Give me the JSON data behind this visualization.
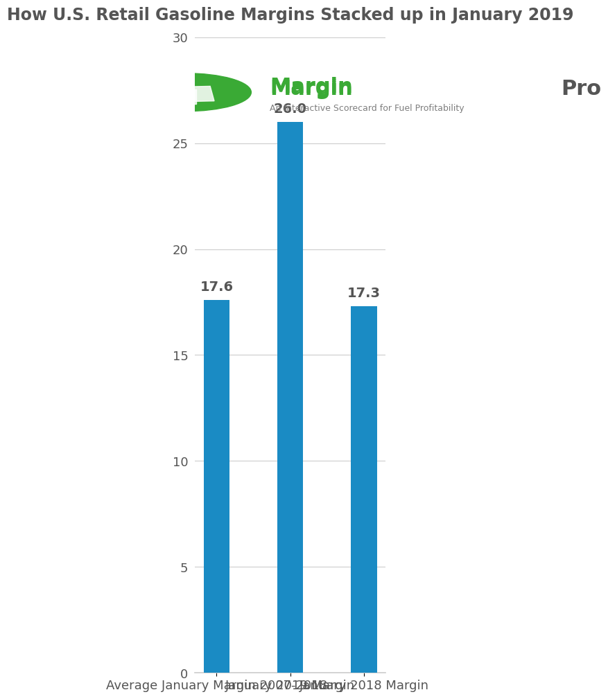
{
  "title": "How U.S. Retail Gasoline Margins Stacked up in January 2019",
  "categories": [
    "Average January Margin 2007-2018",
    "January 2019 Margin",
    "January 2018 Margin"
  ],
  "values": [
    17.6,
    26.0,
    17.3
  ],
  "bar_color": "#1a8bc4",
  "bar_width": 0.35,
  "ylim": [
    0,
    30
  ],
  "yticks": [
    0,
    5,
    10,
    15,
    20,
    25,
    30
  ],
  "title_fontsize": 17,
  "tick_fontsize": 13,
  "label_fontsize": 13,
  "value_fontsize": 14,
  "background_color": "#ffffff",
  "grid_color": "#cccccc",
  "text_color": "#555555",
  "logo_subtitle": "An Interactive Scorecard for Fuel Profitability",
  "logo_green": "#3aaa35",
  "logo_gray": "#7f7f7f"
}
